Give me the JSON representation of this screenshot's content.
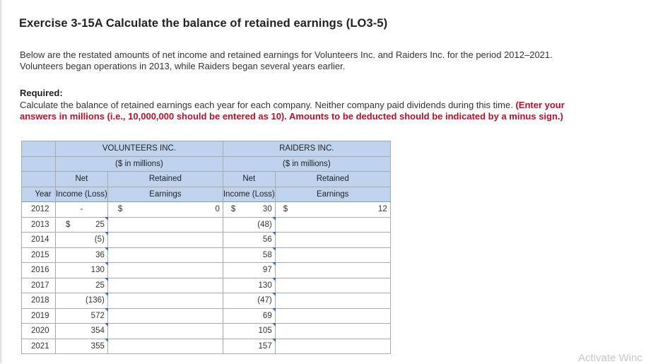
{
  "title": "Exercise 3-15A Calculate the balance of retained earnings (LO3-5)",
  "intro_line1": "Below are the restated amounts of net income and retained earnings for Volunteers Inc. and Raiders Inc. for the period  2012–2021.",
  "intro_line2": "Volunteers began operations in 2013, while Raiders began several years earlier.",
  "required_label": "Required:",
  "required_text": "Calculate the balance of retained earnings each year for each company. Neither company paid dividends during this time.",
  "required_note_line1": "(Enter your",
  "required_note_line2": "answers in millions (i.e., 10,000,000 should be entered as 10). Amounts to be deducted should be indicated by a minus sign.)",
  "table": {
    "volunteers_name": "VOLUNTEERS INC.",
    "volunteers_units": "($ in millions)",
    "raiders_name": "RAIDERS INC.",
    "raiders_units": "($ in millions)",
    "col_net": "Net",
    "col_income": "Income (Loss)",
    "col_retained": "Retained",
    "col_earnings": "Earnings",
    "col_year": "Year",
    "dollar": "$",
    "row2012": {
      "year": "2012",
      "v_net": "-",
      "v_retained": "0",
      "r_net": "30",
      "r_retained": "12"
    },
    "rows": [
      {
        "year": "2013",
        "v_net": "25",
        "r_net": "(48)"
      },
      {
        "year": "2014",
        "v_net": "(5)",
        "r_net": "56"
      },
      {
        "year": "2015",
        "v_net": "36",
        "r_net": "58"
      },
      {
        "year": "2016",
        "v_net": "130",
        "r_net": "97"
      },
      {
        "year": "2017",
        "v_net": "25",
        "r_net": "130"
      },
      {
        "year": "2018",
        "v_net": "(136)",
        "r_net": "(47)"
      },
      {
        "year": "2019",
        "v_net": "572",
        "r_net": "69"
      },
      {
        "year": "2020",
        "v_net": "354",
        "r_net": "105"
      },
      {
        "year": "2021",
        "v_net": "355",
        "r_net": "157"
      }
    ]
  },
  "watermark": "Activate Winc"
}
